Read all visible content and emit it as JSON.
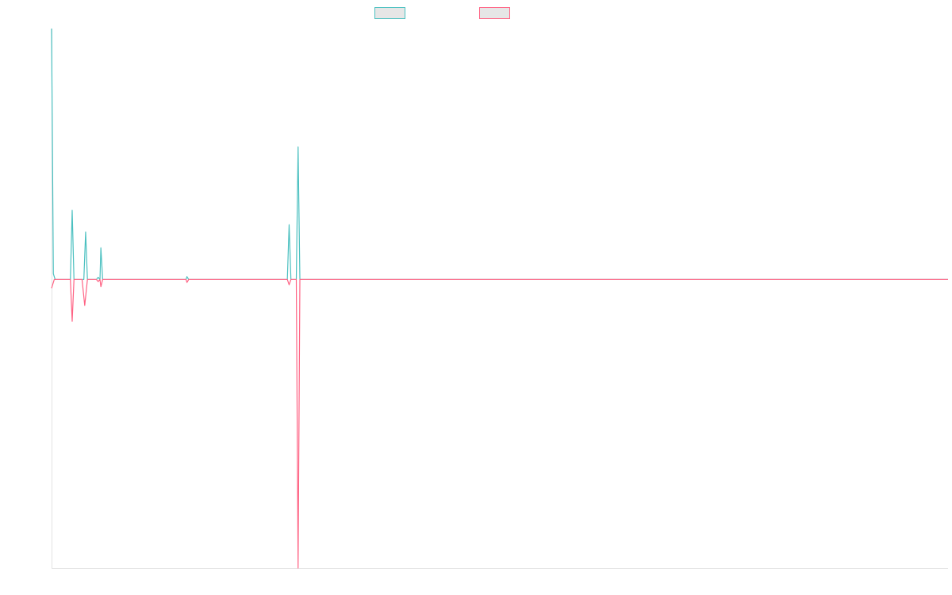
{
  "chart_data": {
    "type": "line",
    "title": "",
    "xlabel": "",
    "ylabel": "",
    "grid": false,
    "legend_position": "top-center",
    "xlim": [
      0,
      100
    ],
    "ylim": [
      -1.0,
      0.87
    ],
    "x_axis_at_y": 0,
    "series": [
      {
        "color": "#4bc0c0",
        "points": [
          [
            0,
            0.87
          ],
          [
            0.2,
            0.02
          ],
          [
            0.4,
            0
          ],
          [
            2.1,
            0
          ],
          [
            2.3,
            0.24
          ],
          [
            2.5,
            0
          ],
          [
            3.6,
            0
          ],
          [
            3.8,
            0.165
          ],
          [
            4.0,
            0
          ],
          [
            5.0,
            0
          ],
          [
            5.2,
            0.008
          ],
          [
            5.4,
            0
          ],
          [
            5.5,
            0.11
          ],
          [
            5.7,
            0
          ],
          [
            15.0,
            0
          ],
          [
            15.1,
            0.01
          ],
          [
            15.3,
            0
          ],
          [
            26.3,
            0
          ],
          [
            26.5,
            0.19
          ],
          [
            26.7,
            0
          ],
          [
            27.3,
            0
          ],
          [
            27.5,
            0.46
          ],
          [
            27.7,
            0
          ],
          [
            100,
            0
          ]
        ]
      },
      {
        "color": "#ff6384",
        "points": [
          [
            0,
            -0.03
          ],
          [
            0.3,
            0
          ],
          [
            2.1,
            0
          ],
          [
            2.3,
            -0.145
          ],
          [
            2.5,
            0
          ],
          [
            3.4,
            0
          ],
          [
            3.7,
            -0.09
          ],
          [
            4.0,
            0
          ],
          [
            5.0,
            0
          ],
          [
            5.2,
            -0.007
          ],
          [
            5.4,
            0
          ],
          [
            5.5,
            -0.025
          ],
          [
            5.7,
            0
          ],
          [
            15.0,
            0
          ],
          [
            15.1,
            -0.01
          ],
          [
            15.3,
            0
          ],
          [
            26.3,
            0
          ],
          [
            26.5,
            -0.018
          ],
          [
            26.7,
            0
          ],
          [
            27.3,
            0
          ],
          [
            27.5,
            -1.0
          ],
          [
            27.7,
            0
          ],
          [
            100,
            0
          ]
        ]
      }
    ]
  }
}
